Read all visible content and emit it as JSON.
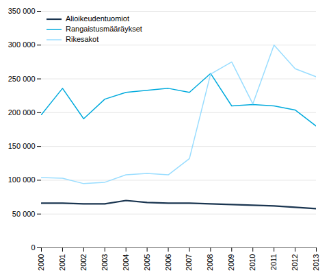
{
  "chart_data": {
    "type": "line",
    "x": [
      2000,
      2001,
      2002,
      2003,
      2004,
      2005,
      2006,
      2007,
      2008,
      2009,
      2010,
      2011,
      2012,
      2013
    ],
    "series": [
      {
        "name": "Alioikeudentuomiot",
        "color": "#1a3550",
        "values": [
          66000,
          66000,
          65000,
          65000,
          70000,
          67000,
          66000,
          66000,
          65000,
          64000,
          63000,
          62000,
          60000,
          58000
        ]
      },
      {
        "name": "Rangaistusmääräykset",
        "color": "#00aadd",
        "values": [
          197000,
          236000,
          191000,
          220000,
          230000,
          233000,
          236000,
          230000,
          258000,
          210000,
          212000,
          210000,
          204000,
          180000
        ]
      },
      {
        "name": "Rikesakot",
        "color": "#99ddff",
        "values": [
          104000,
          103000,
          95000,
          97000,
          108000,
          110000,
          108000,
          132000,
          257000,
          275000,
          213000,
          300000,
          265000,
          253000
        ]
      }
    ],
    "xlim": [
      2000,
      2013
    ],
    "xticks": [
      2000,
      2001,
      2002,
      2003,
      2004,
      2005,
      2006,
      2007,
      2008,
      2009,
      2010,
      2011,
      2012,
      2013
    ],
    "ylim": [
      0,
      350000
    ],
    "yticks": [
      0,
      {
        "value": 50000,
        "label": "50 000"
      },
      {
        "value": 100000,
        "label": "100 000"
      },
      {
        "value": 150000,
        "label": "150 000"
      },
      {
        "value": 200000,
        "label": "200 000"
      },
      {
        "value": 250000,
        "label": "250 000"
      },
      {
        "value": 300000,
        "label": "300 000"
      },
      {
        "value": 350000,
        "label": "350 000"
      }
    ],
    "grid": "y",
    "legend": "upper left"
  }
}
